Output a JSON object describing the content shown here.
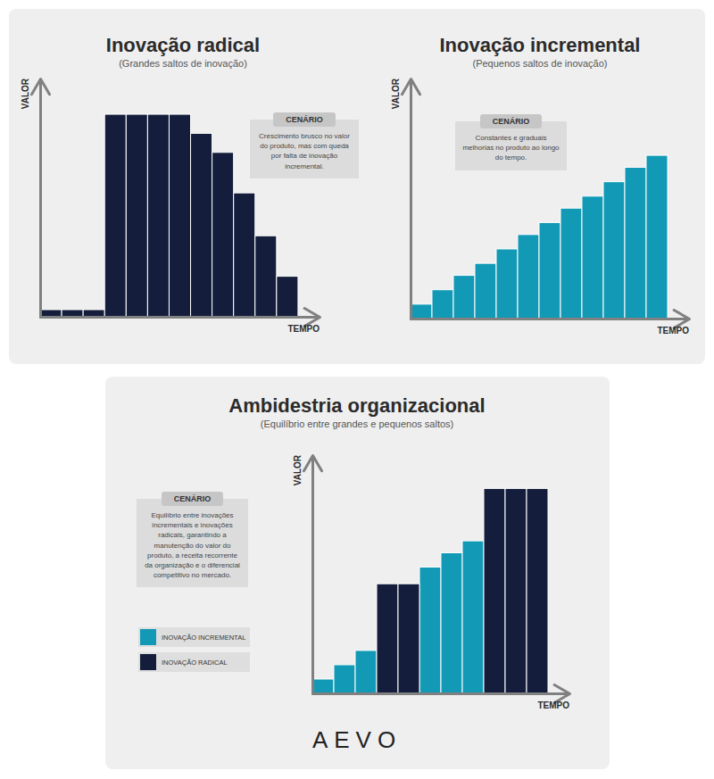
{
  "chart_data": [
    {
      "type": "bar",
      "title": "Inovação radical",
      "subtitle": "(Grandes saltos de inovação)",
      "x_label": "TEMPO",
      "y_label": "VALOR",
      "categories": [
        null,
        null,
        null,
        null,
        null,
        null,
        null,
        null,
        null,
        null,
        null,
        null
      ],
      "values": [
        3,
        3,
        3,
        85,
        85,
        85,
        85,
        77,
        69,
        52,
        34,
        17
      ],
      "color": "#141e3c",
      "ylim": [
        0,
        100
      ],
      "tick_labels": false,
      "annotations": [
        {
          "title": "CENÁRIO",
          "text": "Crescimento brusco no valor do produto, mas com queda por falta de inovação incremental."
        }
      ]
    },
    {
      "type": "bar",
      "title": "Inovação incremental",
      "subtitle": "(Pequenos saltos de inovação)",
      "x_label": "TEMPO",
      "y_label": "VALOR",
      "categories": [
        null,
        null,
        null,
        null,
        null,
        null,
        null,
        null,
        null,
        null,
        null,
        null
      ],
      "values": [
        6,
        12,
        18,
        23,
        29,
        35,
        40,
        46,
        51,
        57,
        63,
        68
      ],
      "color": "#1199b5",
      "ylim": [
        0,
        100
      ],
      "tick_labels": false,
      "annotations": [
        {
          "title": "CENÁRIO",
          "text": "Constantes e graduais melhorias no produto ao longo do tempo."
        }
      ]
    },
    {
      "type": "bar",
      "title": "Ambidestria organizacional",
      "subtitle": "(Equilíbrio entre grandes e pequenos saltos)",
      "x_label": "TEMPO",
      "y_label": "VALOR",
      "categories": [
        null,
        null,
        null,
        null,
        null,
        null,
        null,
        null,
        null,
        null,
        null
      ],
      "series": [
        {
          "name": "INOVAÇÃO INCREMENTAL",
          "color": "#1199b5",
          "values": [
            6,
            12,
            18,
            null,
            null,
            53,
            59,
            64,
            null,
            null,
            null
          ]
        },
        {
          "name": "INOVAÇÃO RADICAL",
          "color": "#141e3c",
          "values": [
            null,
            null,
            null,
            46,
            46,
            null,
            null,
            null,
            86,
            86,
            86
          ]
        }
      ],
      "ylim": [
        0,
        100
      ],
      "tick_labels": false,
      "legend": "left",
      "annotations": [
        {
          "title": "CENÁRIO",
          "text": "Equilíbrio entre inovações incrementais e inovações radicais, garantindo a manutenção do valor do produto, a receita recorrente da organização e o diferencial competitivo no mercado."
        }
      ]
    }
  ],
  "logo": "AEVO"
}
